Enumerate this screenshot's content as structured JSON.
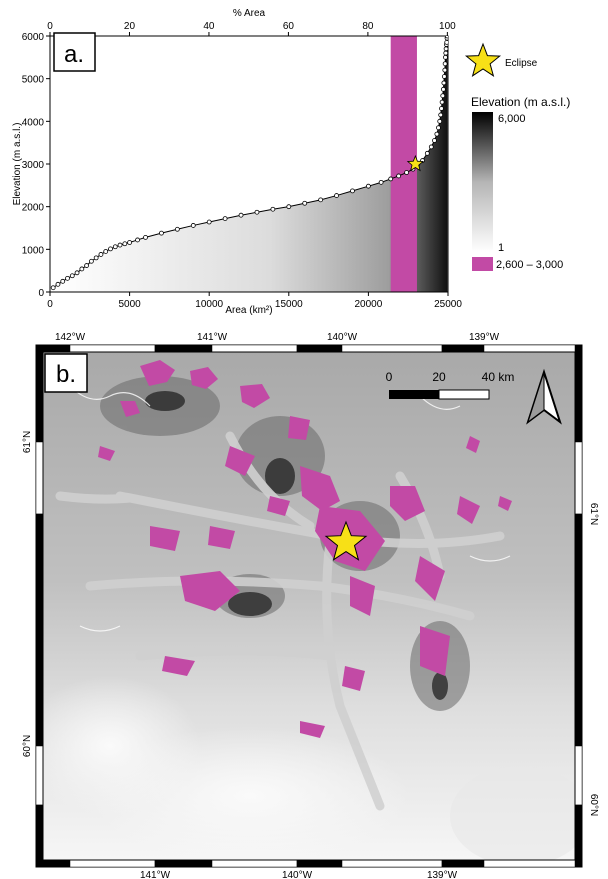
{
  "panel_a": {
    "label": "a.",
    "chart_data": {
      "type": "area",
      "top_axis_label": "% Area",
      "top_ticks": [
        "0",
        "20",
        "40",
        "60",
        "80",
        "100"
      ],
      "xlabel": "Area (km²)",
      "ylabel": "Elevation (m a.s.l.)",
      "xlim": [
        0,
        25000
      ],
      "ylim": [
        0,
        6000
      ],
      "x_ticks": [
        "0",
        "5000",
        "10000",
        "15000",
        "20000",
        "25000"
      ],
      "y_ticks": [
        "0",
        "1000",
        "2000",
        "3000",
        "4000",
        "5000",
        "6000"
      ],
      "hypsometric_curve": {
        "x": [
          200,
          500,
          800,
          1100,
          1400,
          1700,
          2000,
          2300,
          2600,
          2900,
          3200,
          3500,
          3800,
          4100,
          4400,
          4700,
          5000,
          5500,
          6000,
          7000,
          8000,
          9000,
          10000,
          11000,
          12000,
          13000,
          14000,
          15000,
          16000,
          17000,
          18000,
          19000,
          20000,
          20800,
          21400,
          21900,
          22400,
          22800,
          23100,
          23400,
          23700,
          23950,
          24150,
          24300,
          24400,
          24480,
          24540,
          24590,
          24630,
          24670,
          24710,
          24740,
          24770,
          24800,
          24820,
          24840,
          24860,
          24880,
          24900,
          24920,
          24940,
          24960
        ],
        "y": [
          100,
          180,
          250,
          320,
          380,
          450,
          540,
          620,
          720,
          800,
          880,
          950,
          1010,
          1060,
          1100,
          1130,
          1160,
          1220,
          1280,
          1380,
          1470,
          1560,
          1640,
          1720,
          1800,
          1870,
          1940,
          2000,
          2080,
          2160,
          2260,
          2370,
          2480,
          2570,
          2650,
          2720,
          2800,
          2880,
          2980,
          3080,
          3250,
          3400,
          3550,
          3700,
          3850,
          4000,
          4150,
          4300,
          4450,
          4600,
          4750,
          4900,
          5050,
          5200,
          5350,
          5500,
          5600,
          5700,
          5800,
          5850,
          5950,
          6000
        ]
      },
      "highlight_band": {
        "x_range": [
          21400,
          23050
        ],
        "label": "2,600 – 3,000",
        "color": "#c24aa5"
      },
      "eclipse_point": {
        "x": 22950,
        "y": 3000
      },
      "legend": {
        "star_label": "Eclipse",
        "colorbar_title": "Elevation (m a.s.l.)",
        "colorbar_max": "6,000",
        "colorbar_min": "1"
      }
    }
  },
  "panel_b": {
    "label": "b.",
    "top_lon_labels": [
      "142°W",
      "141°W",
      "140°W",
      "139°W"
    ],
    "bottom_lon_labels": [
      "141°W",
      "140°W",
      "139°W"
    ],
    "left_lat_labels": [
      "61°N",
      "60°N"
    ],
    "right_lat_labels": [
      "61°N",
      "60°N"
    ],
    "scalebar": {
      "labels": [
        "0",
        "20",
        "40 km"
      ]
    },
    "north_arrow": "north-arrow",
    "highlight_color": "#c24aa5",
    "star_color": "#f7e017"
  }
}
